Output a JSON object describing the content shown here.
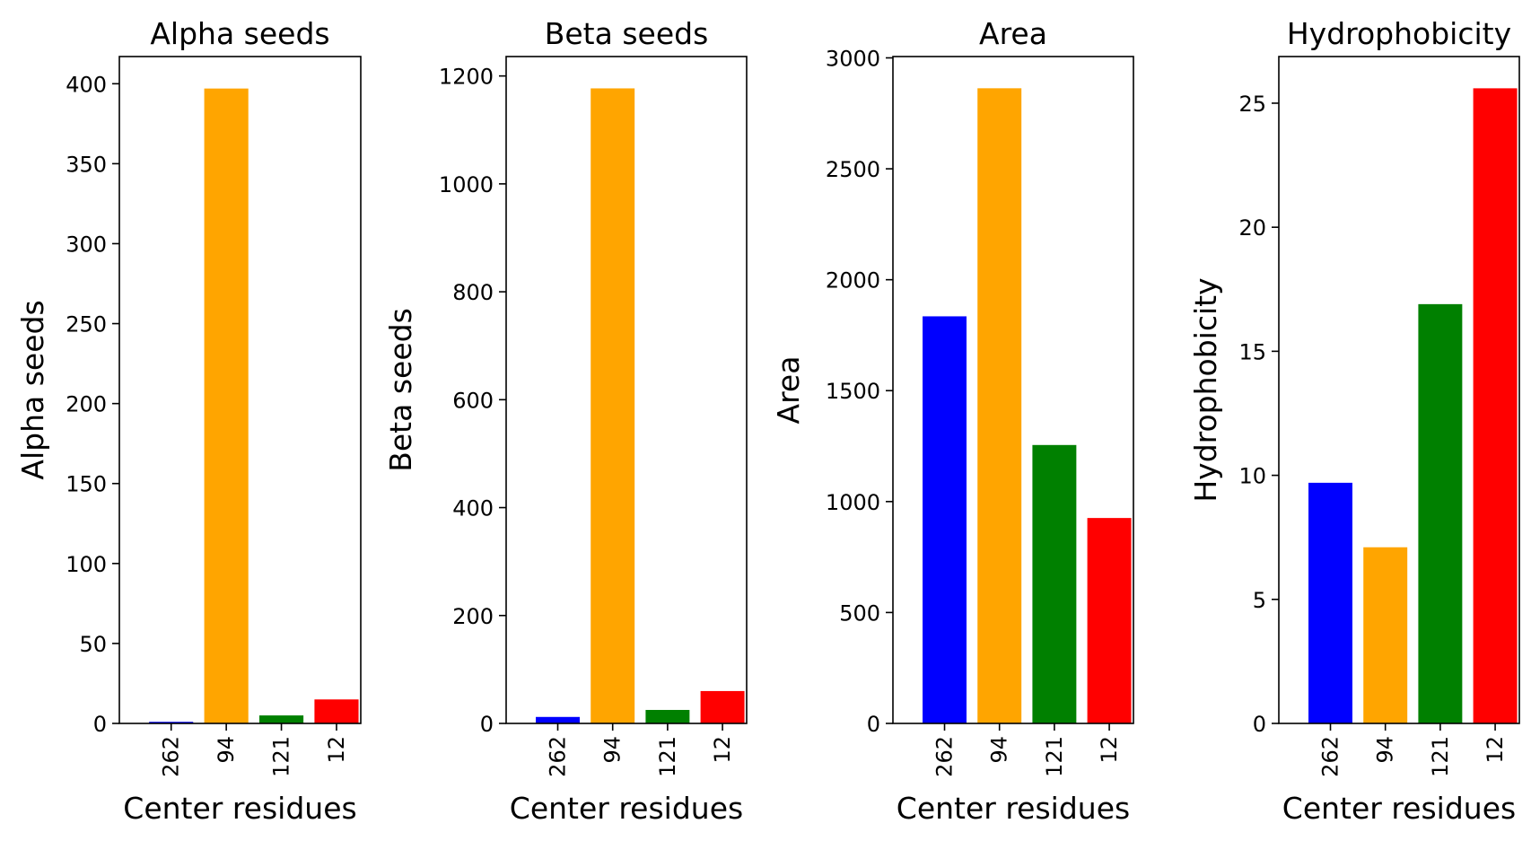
{
  "chart_data": [
    {
      "type": "bar",
      "title": "Alpha seeds",
      "xlabel": "Center residues",
      "ylabel": "Alpha seeds",
      "categories": [
        "262",
        "94",
        "121",
        "12"
      ],
      "values": [
        1,
        397,
        5,
        15
      ],
      "colors": [
        "#0000ff",
        "#ffa500",
        "#008000",
        "#ff0000"
      ],
      "ylim": [
        0,
        417
      ],
      "yticks": [
        0,
        50,
        100,
        150,
        200,
        250,
        300,
        350,
        400
      ]
    },
    {
      "type": "bar",
      "title": "Beta seeds",
      "xlabel": "Center residues",
      "ylabel": "Beta seeds",
      "categories": [
        "262",
        "94",
        "121",
        "12"
      ],
      "values": [
        12,
        1177,
        25,
        60
      ],
      "colors": [
        "#0000ff",
        "#ffa500",
        "#008000",
        "#ff0000"
      ],
      "ylim": [
        0,
        1236
      ],
      "yticks": [
        0,
        200,
        400,
        600,
        800,
        1000,
        1200
      ]
    },
    {
      "type": "bar",
      "title": "Area",
      "xlabel": "Center residues",
      "ylabel": "Area",
      "categories": [
        "262",
        "94",
        "121",
        "12"
      ],
      "values": [
        1835,
        2863,
        1255,
        926
      ],
      "colors": [
        "#0000ff",
        "#ffa500",
        "#008000",
        "#ff0000"
      ],
      "ylim": [
        0,
        3006
      ],
      "yticks": [
        0,
        500,
        1000,
        1500,
        2000,
        2500,
        3000
      ]
    },
    {
      "type": "bar",
      "title": "Hydrophobicity",
      "xlabel": "Center residues",
      "ylabel": "Hydrophobicity",
      "categories": [
        "262",
        "94",
        "121",
        "12"
      ],
      "values": [
        9.7,
        7.1,
        16.9,
        25.6
      ],
      "colors": [
        "#0000ff",
        "#ffa500",
        "#008000",
        "#ff0000"
      ],
      "ylim": [
        0,
        26.88
      ],
      "yticks": [
        0,
        5,
        10,
        15,
        20,
        25
      ]
    }
  ]
}
